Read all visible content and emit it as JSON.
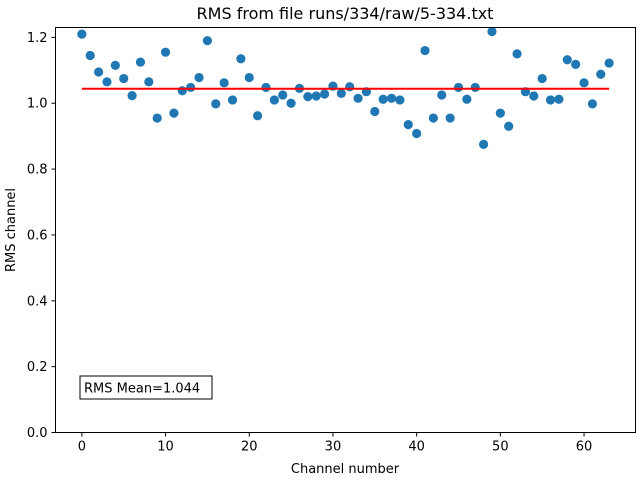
{
  "chart_data": {
    "type": "scatter",
    "title": "RMS from file runs/334/raw/5-334.txt",
    "xlabel": "Channel number",
    "ylabel": "RMS channel",
    "xlim": [
      -3.15,
      66.15
    ],
    "ylim": [
      0,
      1.23
    ],
    "xticks": [
      0,
      10,
      20,
      30,
      40,
      50,
      60
    ],
    "yticks": [
      0.0,
      0.2,
      0.4,
      0.6,
      0.8,
      1.0,
      1.2
    ],
    "ytick_labels": [
      "0.0",
      "0.2",
      "0.4",
      "0.6",
      "0.8",
      "1.0",
      "1.2"
    ],
    "grid": false,
    "point_color": "#1f77b4",
    "mean_line": {
      "value": 1.044,
      "x_range": [
        0,
        63
      ],
      "color": "#ff0000"
    },
    "annotation": "RMS Mean=1.044",
    "x": [
      0,
      1,
      2,
      3,
      4,
      5,
      6,
      7,
      8,
      9,
      10,
      11,
      12,
      13,
      14,
      15,
      16,
      17,
      18,
      19,
      20,
      21,
      22,
      23,
      24,
      25,
      26,
      27,
      28,
      29,
      30,
      31,
      32,
      33,
      34,
      35,
      36,
      37,
      38,
      39,
      40,
      41,
      42,
      43,
      44,
      45,
      46,
      47,
      48,
      49,
      50,
      51,
      52,
      53,
      54,
      55,
      56,
      57,
      58,
      59,
      60,
      61,
      62,
      63
    ],
    "y": [
      1.21,
      1.145,
      1.095,
      1.065,
      1.115,
      1.075,
      1.023,
      1.125,
      1.065,
      0.955,
      1.155,
      0.97,
      1.038,
      1.048,
      1.078,
      1.19,
      0.998,
      1.062,
      1.01,
      1.135,
      1.078,
      0.962,
      1.048,
      1.01,
      1.025,
      1.0,
      1.045,
      1.02,
      1.022,
      1.028,
      1.052,
      1.03,
      1.05,
      1.015,
      1.035,
      0.975,
      1.012,
      1.015,
      1.01,
      0.935,
      0.908,
      1.16,
      0.955,
      1.025,
      0.955,
      1.048,
      1.012,
      1.048,
      0.875,
      1.218,
      0.97,
      0.93,
      1.15,
      1.035,
      1.022,
      1.075,
      1.01,
      1.012,
      1.132,
      1.118,
      1.062,
      0.998,
      1.088,
      1.122
    ]
  }
}
